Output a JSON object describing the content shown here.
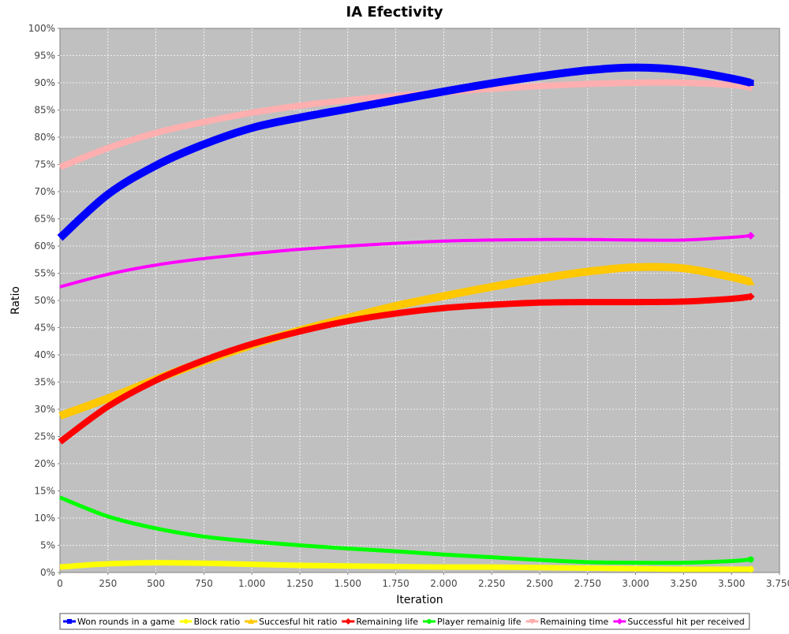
{
  "chart_data": {
    "type": "line",
    "title": "IA Efectivity",
    "xlabel": "Iteration",
    "ylabel": "Ratio",
    "xlim": [
      0,
      3750
    ],
    "ylim": [
      0,
      100
    ],
    "grid": true,
    "legend_position": "bottom",
    "x_ticks": [
      0,
      250,
      500,
      750,
      1000,
      1250,
      1500,
      1750,
      2000,
      2250,
      2500,
      2750,
      3000,
      3250,
      3500,
      3750
    ],
    "x_tick_labels": [
      "0",
      "250",
      "500",
      "750",
      "1.000",
      "1.250",
      "1.500",
      "1.750",
      "2.000",
      "2.250",
      "2.500",
      "2.750",
      "3.000",
      "3.250",
      "3.500",
      "3.750"
    ],
    "y_ticks": [
      0,
      5,
      10,
      15,
      20,
      25,
      30,
      35,
      40,
      45,
      50,
      55,
      60,
      65,
      70,
      75,
      80,
      85,
      90,
      95,
      100
    ],
    "y_tick_labels": [
      "0%",
      "5%",
      "10%",
      "15%",
      "20%",
      "25%",
      "30%",
      "35%",
      "40%",
      "45%",
      "50%",
      "55%",
      "60%",
      "65%",
      "70%",
      "75%",
      "80%",
      "85%",
      "90%",
      "95%",
      "100%"
    ],
    "x": [
      0,
      250,
      500,
      750,
      1000,
      1250,
      1500,
      1750,
      2000,
      2250,
      2500,
      2750,
      3000,
      3250,
      3500,
      3600
    ],
    "series": [
      {
        "name": "Remaining time",
        "color": "#ffafaf",
        "width": 8,
        "marker": "triangle-down",
        "values": [
          74.5,
          78.0,
          80.8,
          82.8,
          84.5,
          85.8,
          86.8,
          87.6,
          88.3,
          88.9,
          89.4,
          89.8,
          90.0,
          90.0,
          89.6,
          89.1
        ]
      },
      {
        "name": "Won rounds in a game",
        "color": "#0000ff",
        "width": 10,
        "marker": "square",
        "values": [
          61.5,
          69.5,
          74.8,
          78.7,
          81.7,
          83.6,
          85.2,
          86.8,
          88.4,
          89.9,
          91.2,
          92.3,
          92.8,
          92.3,
          90.8,
          90.0
        ]
      },
      {
        "name": "Successful hit per received",
        "color": "#ff00ff",
        "width": 4,
        "marker": "diamond",
        "values": [
          52.5,
          54.8,
          56.5,
          57.7,
          58.6,
          59.4,
          60.0,
          60.5,
          60.9,
          61.1,
          61.2,
          61.2,
          61.1,
          61.1,
          61.6,
          61.9
        ]
      },
      {
        "name": "Succesful hit ratio",
        "color": "#ffc800",
        "width": 10,
        "marker": "triangle-up",
        "values": [
          28.8,
          32.0,
          35.5,
          38.8,
          41.8,
          44.5,
          46.8,
          49.0,
          50.8,
          52.5,
          54.0,
          55.3,
          56.1,
          55.9,
          54.3,
          53.4
        ]
      },
      {
        "name": "Remaining life",
        "color": "#ff0000",
        "width": 8,
        "marker": "diamond",
        "values": [
          24.0,
          30.5,
          35.3,
          39.0,
          42.0,
          44.3,
          46.2,
          47.6,
          48.6,
          49.2,
          49.6,
          49.7,
          49.7,
          49.8,
          50.3,
          50.7
        ]
      },
      {
        "name": "Player remainig life",
        "color": "#00ff00",
        "width": 5,
        "marker": "circle",
        "values": [
          13.8,
          10.3,
          8.1,
          6.6,
          5.7,
          5.0,
          4.4,
          3.9,
          3.3,
          2.8,
          2.3,
          1.9,
          1.8,
          1.8,
          2.1,
          2.4
        ]
      },
      {
        "name": "Block ratio",
        "color": "#ffff00",
        "width": 7,
        "marker": "circle",
        "values": [
          1.0,
          1.6,
          1.8,
          1.7,
          1.5,
          1.3,
          1.2,
          1.1,
          1.0,
          1.0,
          0.9,
          0.8,
          0.7,
          0.6,
          0.6,
          0.6
        ]
      }
    ],
    "legend_order": [
      "Won rounds in a game",
      "Block ratio",
      "Succesful hit ratio",
      "Remaining life",
      "Player remainig life",
      "Remaining time",
      "Successful hit per received"
    ],
    "plot_background": "#c0c0c0"
  }
}
